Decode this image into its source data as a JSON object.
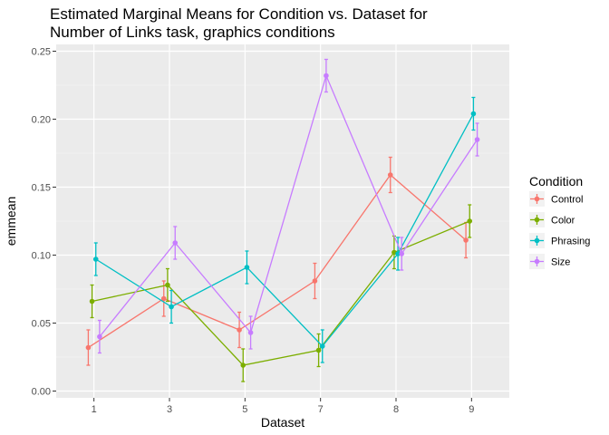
{
  "chart_data": {
    "type": "line",
    "title_lines": [
      "Estimated Marginal Means for Condition vs. Dataset for",
      "Number of Links task, graphics conditions"
    ],
    "xlabel": "Dataset",
    "ylabel": "emmean",
    "categories": [
      "1",
      "3",
      "5",
      "7",
      "8",
      "9"
    ],
    "ylim": [
      -0.005,
      0.255
    ],
    "y_ticks": [
      0.0,
      0.05,
      0.1,
      0.15,
      0.2,
      0.25
    ],
    "y_tick_labels": [
      "0.00",
      "0.05",
      "0.10",
      "0.15",
      "0.20",
      "0.25"
    ],
    "grid": true,
    "error_bars": true,
    "dodge": true,
    "legend": {
      "title": "Condition",
      "position": "right"
    },
    "series": [
      {
        "name": "Control",
        "color": "#F8766D",
        "values": [
          0.032,
          0.068,
          0.045,
          0.081,
          0.159,
          0.111
        ],
        "se": [
          0.013,
          0.013,
          0.013,
          0.013,
          0.013,
          0.013
        ]
      },
      {
        "name": "Color",
        "color": "#7CAE00",
        "values": [
          0.066,
          0.078,
          0.019,
          0.03,
          0.102,
          0.125
        ],
        "se": [
          0.012,
          0.012,
          0.012,
          0.012,
          0.012,
          0.012
        ]
      },
      {
        "name": "Phrasing",
        "color": "#00BFC4",
        "values": [
          0.097,
          0.062,
          0.091,
          0.033,
          0.101,
          0.204
        ],
        "se": [
          0.012,
          0.012,
          0.012,
          0.012,
          0.012,
          0.012
        ]
      },
      {
        "name": "Size",
        "color": "#C77CFF",
        "values": [
          0.04,
          0.109,
          0.043,
          0.232,
          0.101,
          0.185
        ],
        "se": [
          0.012,
          0.012,
          0.012,
          0.012,
          0.012,
          0.012
        ]
      }
    ]
  }
}
